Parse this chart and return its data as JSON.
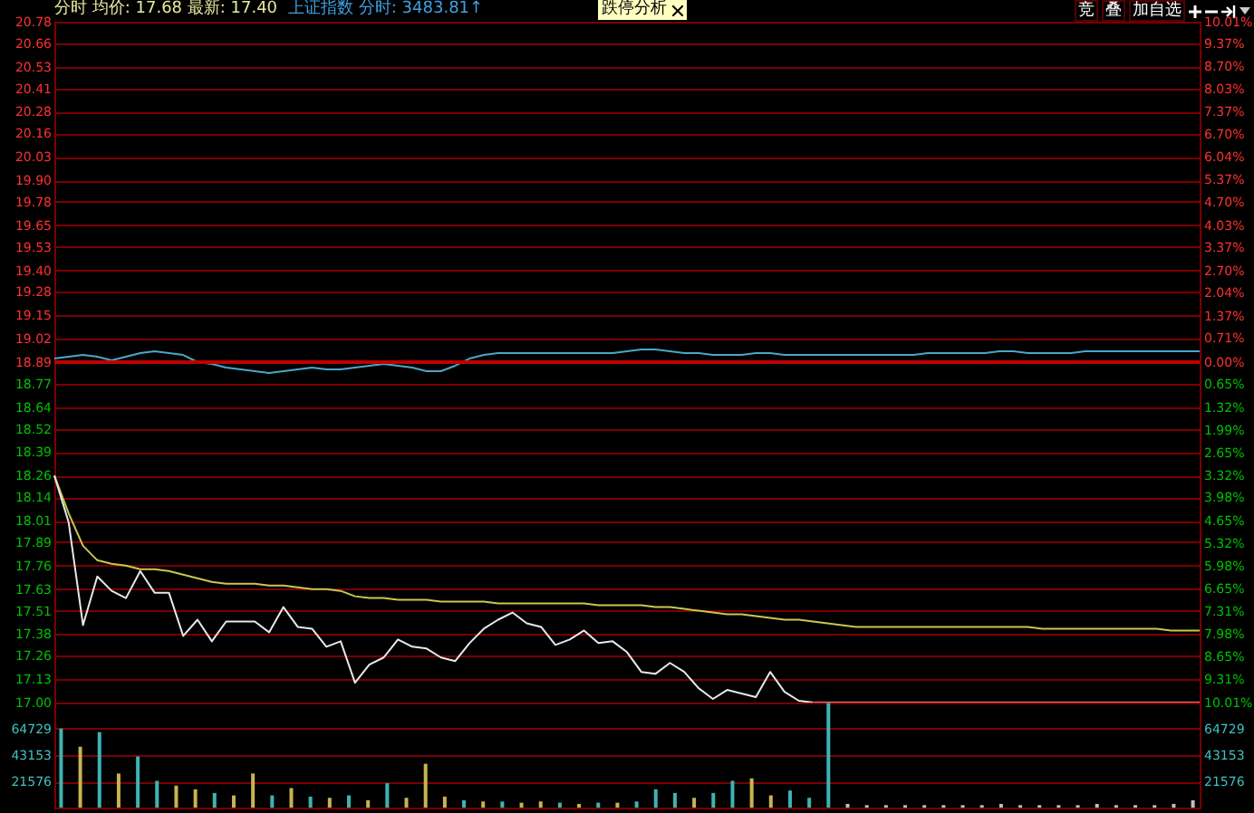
{
  "chart_data": [
    {
      "type": "line",
      "title": "分时 均价: 17.68 最新: 17.40",
      "subtitle": "上证指数 分时: 3483.81↑",
      "annotations": [
        "跌停分析",
        "竞",
        "叠",
        "加自选"
      ],
      "categories": [
        null,
        null,
        null,
        null,
        null,
        null,
        null,
        null,
        null,
        null,
        null,
        null,
        null,
        null,
        null,
        null,
        null,
        null,
        null,
        null,
        null,
        null,
        null,
        null,
        null,
        null,
        null,
        null,
        null,
        null,
        null,
        null,
        null,
        null,
        null,
        null,
        null,
        null,
        null,
        null,
        null,
        null,
        null,
        null,
        null,
        null,
        null,
        null,
        null,
        null,
        null,
        null,
        null,
        null,
        null,
        null,
        null,
        null,
        null,
        null,
        null,
        null,
        null,
        null,
        null,
        null,
        null,
        null,
        null,
        null,
        null,
        null,
        null,
        null,
        null,
        null,
        null,
        null,
        null,
        null,
        null
      ],
      "ylim": [
        17.0,
        20.78
      ],
      "yticks": [
        20.78,
        20.66,
        20.53,
        20.41,
        20.28,
        20.16,
        20.03,
        {
          "value": 19.9,
          "label": "19.90"
        },
        19.78,
        19.65,
        19.53,
        {
          "value": 19.4,
          "label": "19.40"
        },
        19.28,
        19.15,
        19.02,
        18.89,
        18.77,
        18.64,
        18.52,
        18.39,
        18.26,
        18.14,
        18.01,
        17.89,
        17.76,
        17.63,
        17.51,
        17.38,
        17.26,
        17.13,
        {
          "value": 17,
          "label": "17.00"
        }
      ],
      "y2lim": [
        -10.01,
        10.01
      ],
      "y2ticks": [
        {
          "value": 10.01,
          "label": "10.01%"
        },
        {
          "value": 9.37,
          "label": "9.37%"
        },
        {
          "value": 8.7,
          "label": "8.70%"
        },
        {
          "value": 8.03,
          "label": "8.03%"
        },
        {
          "value": 7.37,
          "label": "7.37%"
        },
        {
          "value": 6.7,
          "label": "6.70%"
        },
        {
          "value": 6.04,
          "label": "6.04%"
        },
        {
          "value": 5.37,
          "label": "5.37%"
        },
        {
          "value": 4.7,
          "label": "4.70%"
        },
        {
          "value": 4.03,
          "label": "4.03%"
        },
        {
          "value": 3.37,
          "label": "3.37%"
        },
        {
          "value": 2.7,
          "label": "2.70%"
        },
        {
          "value": 2.04,
          "label": "2.04%"
        },
        {
          "value": 1.37,
          "label": "1.37%"
        },
        {
          "value": 0.71,
          "label": "0.71%"
        },
        {
          "value": 0,
          "label": "0.00%"
        },
        {
          "value": -0.65,
          "label": "0.65%"
        },
        {
          "value": -1.32,
          "label": "1.32%"
        },
        {
          "value": -1.99,
          "label": "1.99%"
        },
        {
          "value": -2.65,
          "label": "2.65%"
        },
        {
          "value": -3.32,
          "label": "3.32%"
        },
        {
          "value": -3.98,
          "label": "3.98%"
        },
        {
          "value": -4.65,
          "label": "4.65%"
        },
        {
          "value": -5.32,
          "label": "5.32%"
        },
        {
          "value": -5.98,
          "label": "5.98%"
        },
        {
          "value": -6.65,
          "label": "6.65%"
        },
        {
          "value": -7.31,
          "label": "7.31%"
        },
        {
          "value": -7.98,
          "label": "7.98%"
        },
        {
          "value": -8.65,
          "label": "8.65%"
        },
        {
          "value": -9.31,
          "label": "9.31%"
        },
        {
          "value": -10.01,
          "label": "10.01%"
        }
      ],
      "grid": true,
      "tick_labels": "y",
      "ref_lines": [
        {
          "axis": "y",
          "value": 18.89,
          "color": "#c00000"
        }
      ],
      "series": [
        {
          "color": "#4aa8c8",
          "values": [
            18.91,
            18.92,
            18.93,
            18.92,
            18.9,
            18.92,
            18.94,
            18.95,
            18.94,
            18.93,
            18.89,
            18.88,
            18.86,
            18.85,
            18.84,
            18.83,
            18.84,
            18.85,
            18.86,
            18.85,
            18.85,
            18.86,
            18.87,
            18.88,
            18.87,
            18.86,
            18.84,
            18.84,
            18.87,
            18.91,
            18.93,
            18.94,
            18.94,
            18.94,
            18.94,
            18.94,
            18.94,
            18.94,
            18.94,
            18.94,
            18.95,
            18.96,
            18.96,
            18.95,
            18.94,
            18.94,
            18.93,
            18.93,
            18.93,
            18.94,
            18.94,
            18.93,
            18.93,
            18.93,
            18.93,
            18.93,
            18.93,
            18.93,
            18.93,
            18.93,
            18.93,
            18.94,
            18.94,
            18.94,
            18.94,
            18.94,
            18.95,
            18.95,
            18.94,
            18.94,
            18.94,
            18.94,
            18.95,
            18.95,
            18.95,
            18.95,
            18.95,
            18.95,
            18.95,
            18.95,
            18.95
          ]
        },
        {
          "color": "#c8c850",
          "values": [
            18.26,
            18.05,
            17.87,
            17.79,
            17.77,
            17.76,
            17.74,
            17.74,
            17.73,
            17.71,
            17.69,
            17.67,
            17.66,
            17.66,
            17.66,
            17.65,
            17.65,
            17.64,
            17.63,
            17.63,
            17.62,
            17.59,
            17.58,
            17.58,
            17.57,
            17.57,
            17.57,
            17.56,
            17.56,
            17.56,
            17.56,
            17.55,
            17.55,
            17.55,
            17.55,
            17.55,
            17.55,
            17.55,
            17.54,
            17.54,
            17.54,
            17.54,
            17.53,
            17.53,
            17.52,
            17.51,
            17.5,
            17.49,
            17.49,
            17.48,
            17.47,
            17.46,
            17.46,
            17.45,
            17.44,
            17.43,
            17.42,
            17.42,
            17.42,
            17.42,
            17.42,
            17.42,
            17.42,
            17.42,
            17.42,
            17.42,
            17.42,
            17.42,
            17.42,
            17.41,
            17.41,
            17.41,
            17.41,
            17.41,
            17.41,
            17.41,
            17.41,
            17.41,
            17.4,
            17.4,
            17.4
          ]
        },
        {
          "color": "#e8e8e8",
          "values": [
            18.26,
            18.0,
            17.43,
            17.7,
            17.62,
            17.58,
            17.73,
            17.61,
            17.61,
            17.37,
            17.46,
            17.34,
            17.45,
            17.45,
            17.45,
            17.39,
            17.53,
            17.42,
            17.41,
            17.31,
            17.34,
            17.11,
            17.21,
            17.25,
            17.35,
            17.31,
            17.3,
            17.25,
            17.23,
            17.33,
            17.41,
            17.46,
            17.5,
            17.44,
            17.42,
            17.32,
            17.35,
            17.4,
            17.33,
            17.34,
            17.28,
            17.17,
            17.16,
            17.22,
            17.17,
            17.08,
            17.02,
            17.07,
            17.05,
            17.03,
            17.17,
            17.06,
            17.01,
            17,
            null,
            null,
            null,
            null,
            null,
            null,
            null,
            null,
            null,
            null,
            null,
            null,
            null,
            null,
            null,
            null,
            null,
            null,
            null,
            null,
            null,
            null,
            null,
            null,
            null,
            null,
            null
          ]
        },
        {
          "color": "#ff8080",
          "values": [
            null,
            null,
            null,
            null,
            null,
            null,
            null,
            null,
            null,
            null,
            null,
            null,
            null,
            null,
            null,
            null,
            null,
            null,
            null,
            null,
            null,
            null,
            null,
            null,
            null,
            null,
            null,
            null,
            null,
            null,
            null,
            null,
            null,
            null,
            null,
            null,
            null,
            null,
            null,
            null,
            null,
            null,
            null,
            null,
            null,
            null,
            null,
            null,
            null,
            null,
            null,
            null,
            null,
            17,
            17,
            17,
            17,
            17,
            17,
            17,
            17,
            17,
            17,
            17,
            17,
            17,
            17,
            17,
            17,
            17,
            17,
            17,
            17,
            17,
            17,
            17,
            17,
            17,
            17,
            17,
            17
          ]
        }
      ]
    },
    {
      "type": "bar",
      "categories": [
        null,
        null,
        null,
        null,
        null,
        null,
        null,
        null,
        null,
        null,
        null,
        null,
        null,
        null,
        null,
        null,
        null,
        null,
        null,
        null,
        null,
        null,
        null,
        null,
        null,
        null,
        null,
        null,
        null,
        null,
        null,
        null,
        null,
        null,
        null,
        null,
        null,
        null,
        null,
        null,
        null,
        null,
        null,
        null,
        null,
        null,
        null,
        null,
        null,
        null,
        null,
        null,
        null,
        null,
        null,
        null,
        null,
        null,
        null,
        null
      ],
      "values": [
        65000,
        50000,
        62000,
        28000,
        42000,
        22000,
        18000,
        15000,
        12000,
        10000,
        28000,
        10000,
        16000,
        9000,
        8000,
        10000,
        6000,
        20000,
        8000,
        36000,
        9000,
        6000,
        5000,
        5000,
        4000,
        5000,
        4000,
        3000,
        4000,
        4000,
        5000,
        15000,
        12000,
        8000,
        12000,
        22000,
        24000,
        10000,
        14000,
        8000,
        86000,
        3000,
        2000,
        2000,
        2000,
        2000,
        2000,
        2000,
        2000,
        3000,
        2000,
        2000,
        2000,
        2000,
        3000,
        2000,
        2000,
        2000,
        3000,
        6000
      ],
      "colors": [
        "#3cb4b4",
        "#c8b450",
        "#3cb4b4",
        "#c8b450",
        "#3cb4b4",
        "#3cb4b4",
        "#c8b450",
        "#c8b450",
        "#3cb4b4",
        "#c8b450",
        "#c8b450",
        "#3cb4b4",
        "#c8b450",
        "#3cb4b4",
        "#c8b450",
        "#3cb4b4",
        "#c8b450",
        "#3cb4b4",
        "#c8b450",
        "#c8b450",
        "#c8b450",
        "#3cb4b4",
        "#c8b450",
        "#3cb4b4",
        "#c8b450",
        "#c8b450",
        "#3cb4b4",
        "#c8b450",
        "#3cb4b4",
        "#c8b450",
        "#3cb4b4",
        "#3cb4b4",
        "#3cb4b4",
        "#c8b450",
        "#3cb4b4",
        "#3cb4b4",
        "#c8b450",
        "#c8b450",
        "#3cb4b4",
        "#3cb4b4",
        "#3cb4b4",
        "#c0c0c0",
        "#c0c0c0",
        "#c0c0c0",
        "#c0c0c0",
        "#c0c0c0",
        "#c0c0c0",
        "#c0c0c0",
        "#c0c0c0",
        "#c0c0c0",
        "#c0c0c0",
        "#c0c0c0",
        "#c0c0c0",
        "#c0c0c0",
        "#c0c0c0",
        "#c0c0c0",
        "#c0c0c0",
        "#c0c0c0",
        "#c0c0c0",
        "#c0c0c0"
      ],
      "ylim": [
        0,
        86305
      ],
      "yticks": [
        21576,
        43153,
        64729
      ],
      "y2lim": [
        0,
        86305
      ],
      "y2ticks": [
        21576,
        43153,
        64729
      ],
      "grid": true,
      "tick_labels": "y"
    }
  ]
}
